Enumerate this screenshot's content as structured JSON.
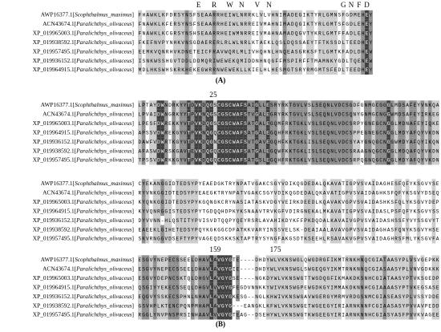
{
  "panels": [
    {
      "label": "(A)",
      "blocks": [
        {
          "header": "               E   R   W  N   V  N                  G N F D ",
          "rows": [
            {
              "name": [
                "AWP16377.1[",
                "Scophthalmus_maximus",
                "]"
              ],
              "sequence": "FHAWKLKFDRSYNSFSEAARRHEIWLNRRKLVLVHNIMADEGIKTYRLGMNSFGDMEHEY"
            },
            {
              "name": [
                "ACN43674.1[",
                "Paralichthys_olivaceus",
                "]"
              ],
              "sequence": "FNAWKLKFERSYNSFSEAARRHEIWLNRREIVMAHNIMADQGIKTYRLGMTSFGDLEHEY"
            },
            {
              "name": [
                "XP_019965003.1[",
                "Paralichthys_olivaceus",
                "]"
              ],
              "sequence": "FNAWKLKCGRSYNSHSEAARRHEIWMNRREIVMAHNAMADQGVTYKRLGMTFFADLEHEY"
            },
            {
              "name": [
                "XP_019938592.1[",
                "Paralichthys_olivaceus",
                "]"
              ],
              "sequence": "FKEFNVPYNHKVNSGDAERERLRLWLNRLKTAEKLQSLDQSSAEYTFTKSSDLTEEDHEY"
            },
            {
              "name": [
                "XP_019957495.1[",
                "Paralichthys_olivaceus",
                "]"
              ],
              "sequence": "EEMKVQNRHVKDNETEICFRAVWQRLMLIVHQHNLHNQEASGRKSFTLGMTKFADLDHEW"
            },
            {
              "name": [
                "XP_019936152.1[",
                "Paralichthys_olivaceus",
                "]"
              ],
              "sequence": "ISNKWSSHGVTDDLDDMQRIWEWEKQMIDDNHNQGFFMSPIRFFTMAMNKYGDLTQENEW"
            },
            {
              "name": [
                "XP_019964915.1[",
                "Paralichthys_olivaceus",
                "]"
              ],
              "sequence": "MDLHKSWHSKRKHEKEGWRRNWEWEKLLKIELHLHESMGTSRYRMGMTSFEDLTEEDHEY"
            }
          ]
        }
      ]
    },
    {
      "label": "(B)",
      "blocks": [
        {
          "header": "                   25",
          "rows": [
            {
              "name": [
                "AWP16377.1[",
                "Scophthalmus_maximus",
                "]"
              ],
              "sequence": "LPTAYDWNDRKYYTDVKDQGSCGSCWAFSAIGLLESRYRKTGVLVSLSEQNLVDCSGDFGNMGCGGGLMDSAFEYVNKQA"
            },
            {
              "name": [
                "ACN43674.1[",
                "Paralichthys_olivaceus",
                "]"
              ],
              "sequence": "LPVAIDWNGRKYYTPVKNQGSCGSCWAFSTVGALEGRYRKTGVLVSLSEQNLVDCSQNYGNMGCNGGWMDSAFEYIRKEG"
            },
            {
              "name": [
                "XP_019965003.1[",
                "Paralichthys_olivaceus",
                "]"
              ],
              "sequence": "LPESFDWREKKYVTPVKDQGSCGSCWAFSATGALEGQMFRKTGKLVSLSEQNLVDCSRPYGNEGCNGGLMDNAFEYIQKE"
            },
            {
              "name": [
                "XP_019964915.1[",
                "Paralichthys_olivaceus",
                "]"
              ],
              "sequence": "APSSVDWREKGYVTPVKNQGQCGSCWAFSATGALEGQHFRKTGKLVSLSEQNLVDCSPPEGNEGCNGGLMDYAFQYVKDN"
            },
            {
              "name": [
                "XP_019936152.1[",
                "Paralichthys_olivaceus",
                "]"
              ],
              "sequence": "DAWFVDWRTKGYVTPVKDQGNCGSCWAFSVTGAVEGQHFKKTGKLISLSEQNLVDCSYAYGNQGCNGGWMDYAFQYIKQN"
            },
            {
              "name": [
                "XP_019938592.1[",
                "Paralichthys_olivaceus",
                "]"
              ],
              "sequence": "AFASWDWRSKGAVTEVKDQGQCGSCWAFSATGALEGQWFKKTGKLISLSEQNLVDCSRAAGNQGCNGGLMDQAFQYVKDN"
            },
            {
              "name": [
                "XP_019957495.1[",
                "Paralichthys_olivaceus",
                "]"
              ],
              "sequence": "TPSSVDWRKKGYVTPVKDQGQCGSCWAFSATGSLEGQHFRKTGKLVSLSEQNLVDCSRPQGNQGCNGGLMDYAFQYVKDN"
            }
          ]
        },
        {
          "rows": [
            {
              "name": [
                "AWP16377.1[",
                "Scophthalmus_maximus",
                "]"
              ],
              "sequence": "CYEKANGGIDTEDSYPYEAEDGKTRYNPATVGAKCSGYVDIKQGDEDALQKAVATIGPVSVAIDAGHESFQFYKSGVYSE"
            },
            {
              "name": [
                "ACN43674.1[",
                "Paralichthys_olivaceus",
                "]"
              ],
              "sequence": "RYVNKGGIDTEDSYPYEAEGKTRYNPATVGAKCSGYVDIKQGDEDALQKAVATIGPVSVAIDAGHKSFQFYKSGVYDSEQ"
            },
            {
              "name": [
                "XP_019965003.1[",
                "Paralichthys_olivaceus",
                "]"
              ],
              "sequence": "KYQNKGGIDTEDSYPYKGQNGKCRYNASIATASKVDGYVEIRKDEEDLKQAVAKVGPVSVAIDASHKSFQLYKSGVYDEP"
            },
            {
              "name": [
                "XP_019964915.1[",
                "Paralichthys_olivaceus",
                "]"
              ],
              "sequence": "KYVQNRGGISTEDSYPYTGDQQHDPKYKSNAAVTRVKGFVDIRGNEKALMKAVATIGPVSVAIDASLPSFQFYKSGVYSS"
            },
            {
              "name": [
                "XP_019936152.1[",
                "Paralichthys_olivaceus",
                "]"
              ],
              "sequence": "DYVVNN-HLQSTITYPVISVDTQQPYQEYRSRLAVAHIKDYKFFPKDQDALKAVAIVGPVSVAIDASHSSFYVYSSGVYT"
            },
            {
              "name": [
                "XP_019938592.1[",
                "Paralichthys_olivaceus",
                "]"
              ],
              "sequence": "EAEEKLGIHETEDSYPQYKGKGGCDFATKKVARYINSSVELSK-DEAIAALAVAVGPVSVAIDAGHASFQNYKSGVYHSE"
            },
            {
              "name": [
                "XP_019957495.1[",
                "Paralichthys_olivaceus",
                "]"
              ],
              "sequence": "SKVRNGGVDSEFTYPYVAGEQDSKKSKTAPTRYSYNGFAKGSDTKSEEHLRSAVAKVGPVSVAIDAGHRSFMLYKSGVFA"
            }
          ]
        },
        {
          "header": "                   159             175",
          "rows": [
            {
              "name": [
                "AWP16377.1[",
                "Scophthalmus_maximus",
                "]"
              ],
              "sequence": "ESGVYNEPECSSEELDHAVLAVGYGTE----DHDYWLVKNSWGLQWGDRGFIKMTRNKHNQCGIATAASYPLVSVGEPKK"
            },
            {
              "name": [
                "ACN43674.1[",
                "Paralichthys_olivaceus",
                "]"
              ],
              "sequence": "ESGVYNEPECSSEELDHAVLAVGYGIE----DHDYWLVKNSWGLSWGEQGYIKMTRNKNNQCGIASAASYPLVNVGDKKK"
            },
            {
              "name": [
                "XP_019965003.1[",
                "Paralichthys_olivaceus",
                "]"
              ],
              "sequence": "ESGVYDEPNCSKTQLDHGVLAVGYGSE----NGKDYWLVKNSWGTTWGDQGFIKMAKDKSNHCGIATAASYPTVKSGEDP"
            },
            {
              "name": [
                "XP_019964915.1[",
                "Paralichthys_olivaceus",
                "]"
              ],
              "sequence": "QSGIYYEKECSSEQLDHGVLVVGYGFEGDVNNKKYWIVKNSWGPEWGDKGYIMMAKDKNNHCGIAAAASYPTVKEGSASE"
            },
            {
              "name": [
                "XP_019936152.1[",
                "Paralichthys_olivaceus",
                "]"
              ],
              "sequence": "EQGVYSSKECSPHNLNHAVLAVGYGKESG--NGLKHWIVKNSWGAVWGERGYMRMVRDGSNMCGIASEASYPLVSSYDDE"
            },
            {
              "name": [
                "XP_019938592.1[",
                "Paralichthys_olivaceus",
                "]"
              ],
              "sequence": "GSVHPLKTENCPQNPMHAMLAVGYG---EANGKLKFWLVKNSWGETWGEEGYIRIARNKNNFCGIAASASYPVVAVPEDD"
            },
            {
              "name": [
                "XP_019957495.1[",
                "Paralichthys_olivaceus",
                "]"
              ],
              "sequence": "RGGLYNVPNSPRSINHAAVLVVGYGTEAG--DSEHYWLVKNSWGTKWGEEGYIRIARNKNNHCGIASYASFPVVKVAGEE"
            }
          ]
        }
      ]
    }
  ]
}
